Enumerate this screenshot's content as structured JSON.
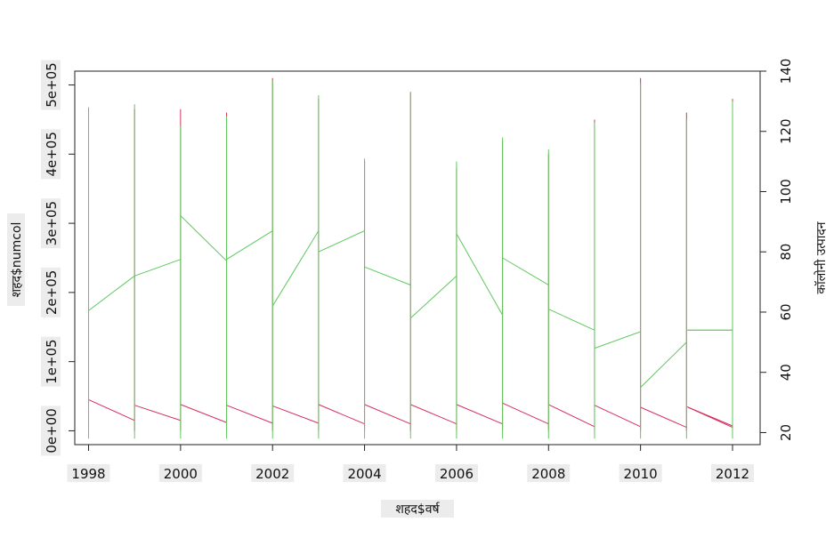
{
  "chart_data": {
    "type": "line",
    "xlabel": "शहद$वर्ष",
    "ylabel_left": "शहद$numcol",
    "ylabel_right": "कॉलोनी उत्पादन",
    "xlim": [
      1997.7,
      2012.6
    ],
    "ylim_left": [
      -20000,
      520000
    ],
    "ylim_right": [
      16,
      140
    ],
    "x_ticks": [
      1998,
      2000,
      2002,
      2004,
      2006,
      2008,
      2010,
      2012
    ],
    "x_tick_labels": [
      "1998",
      "2000",
      "2002",
      "2004",
      "2006",
      "2008",
      "2010",
      "2012"
    ],
    "y_left_ticks": [
      0,
      100000,
      200000,
      300000,
      400000,
      500000
    ],
    "y_left_tick_labels": [
      "0e+00",
      "1e+05",
      "2e+05",
      "3e+05",
      "4e+05",
      "5e+05"
    ],
    "y_right_ticks": [
      20,
      40,
      60,
      80,
      100,
      120,
      140
    ],
    "y_right_tick_labels": [
      "20",
      "40",
      "60",
      "80",
      "100",
      "120",
      "140"
    ],
    "grid": false,
    "series": [
      {
        "axis": "left",
        "color": "#d6305e",
        "x": [
          1998,
          1999,
          2000,
          2001,
          2002,
          2003,
          2004,
          2005,
          2006,
          2007,
          2008,
          2009,
          2010,
          2011,
          2012
        ],
        "start": [
          45000,
          37000,
          38000,
          37000,
          36000,
          38000,
          38000,
          38000,
          38000,
          40000,
          38000,
          37000,
          34000,
          35000,
          34000
        ],
        "end": [
          15000,
          15000,
          12000,
          11000,
          11000,
          10000,
          10000,
          10000,
          10000,
          10000,
          6000,
          6000,
          5000,
          7000,
          5000
        ],
        "peak": [
          465000,
          465000,
          465000,
          460000,
          510000,
          480000,
          390000,
          490000,
          380000,
          420000,
          400000,
          450000,
          510000,
          460000,
          480000
        ]
      },
      {
        "axis": "right",
        "color": "#5ec95e",
        "x": [
          1998,
          1999,
          2000,
          2001,
          2002,
          2003,
          2004,
          2005,
          2006,
          2007,
          2008,
          2009,
          2010,
          2011,
          2012
        ],
        "start": [
          60.5,
          72,
          92,
          77.5,
          62,
          80,
          75,
          58,
          86,
          78,
          61,
          48,
          35,
          54,
          54
        ],
        "end": [
          72,
          77.5,
          77,
          87,
          87,
          87,
          69,
          72,
          59,
          69,
          54,
          53.5,
          50,
          54,
          54
        ],
        "peak": [
          128,
          129,
          122,
          125,
          137,
          132,
          111,
          133,
          110,
          118,
          114,
          123,
          136,
          124,
          130
        ]
      }
    ]
  }
}
